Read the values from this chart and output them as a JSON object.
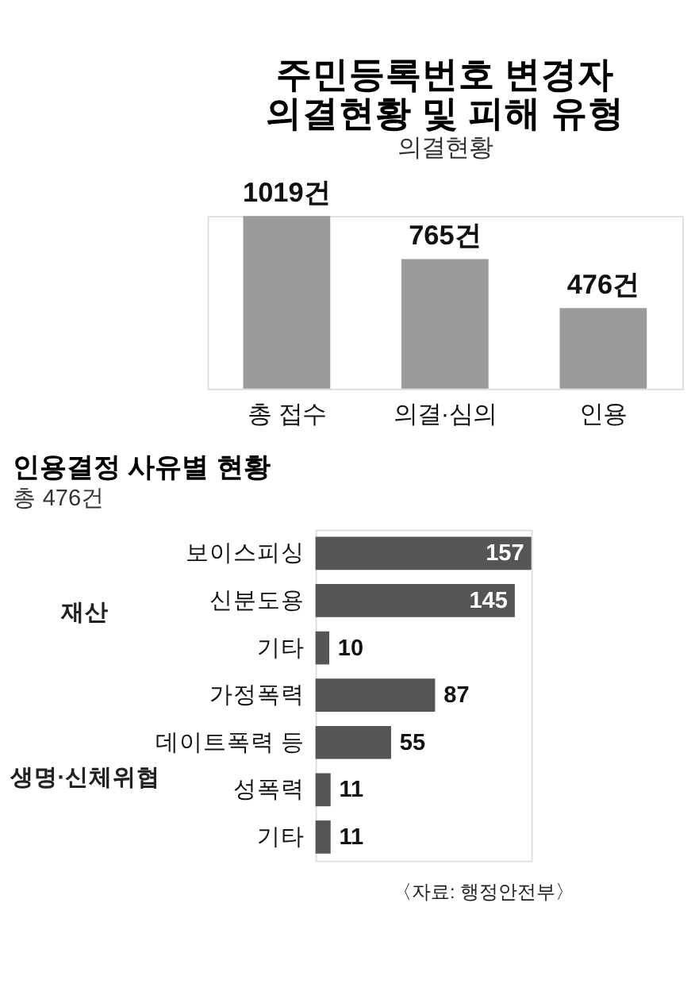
{
  "chart_data": [
    {
      "type": "bar",
      "title": "주민등록번호 변경자 의결현황 및 피해 유형",
      "subtitle": "의결현황",
      "categories": [
        "총 접수",
        "의결·심의",
        "인용"
      ],
      "values": [
        1019,
        765,
        476
      ],
      "value_labels": [
        "1019건",
        "765건",
        "476건"
      ],
      "color": "#9b9b9b"
    },
    {
      "type": "bar",
      "orientation": "horizontal",
      "title": "인용결정 사유별 현황",
      "subtitle": "총 476건",
      "categories": [
        "보이스피싱",
        "신분도용",
        "기타",
        "가정폭력",
        "데이트폭력 등",
        "성폭력",
        "기타"
      ],
      "values": [
        157,
        145,
        10,
        87,
        55,
        11,
        11
      ],
      "data_labels": true,
      "color": "#555555",
      "annotations": [
        "재산",
        "생명·신체위협",
        "〈자료: 행정안전부〉"
      ]
    }
  ]
}
